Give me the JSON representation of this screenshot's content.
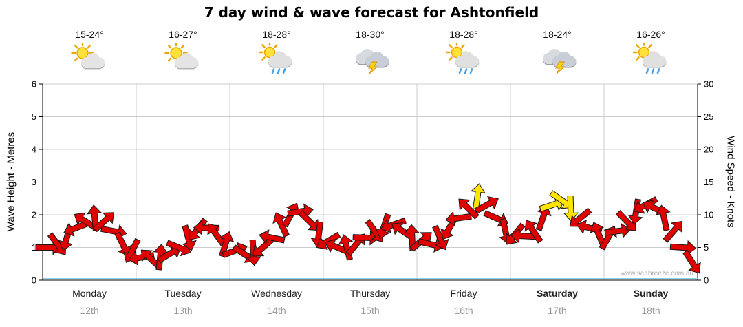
{
  "header": {
    "title": "7 day wind & wave forecast for Ashtonfield"
  },
  "watermark": "www.seabreeze.com.au",
  "days": [
    {
      "name": "Monday",
      "date": "12th",
      "temp": "15-24°",
      "icon": "sun-cloud",
      "bold": false
    },
    {
      "name": "Tuesday",
      "date": "13th",
      "temp": "16-27°",
      "icon": "sun-cloud",
      "bold": false
    },
    {
      "name": "Wednesday",
      "date": "14th",
      "temp": "18-28°",
      "icon": "sun-cloud-rain",
      "bold": false
    },
    {
      "name": "Thursday",
      "date": "15th",
      "temp": "18-30°",
      "icon": "storm",
      "bold": false
    },
    {
      "name": "Friday",
      "date": "16th",
      "temp": "18-28°",
      "icon": "sun-cloud-rain",
      "bold": false
    },
    {
      "name": "Saturday",
      "date": "17th",
      "temp": "18-24°",
      "icon": "storm",
      "bold": true
    },
    {
      "name": "Sunday",
      "date": "18th",
      "temp": "16-26°",
      "icon": "sun-cloud-rain",
      "bold": true
    }
  ],
  "chart_data": {
    "type": "wind-wave-arrows",
    "title": "7 day wind & wave forecast for Ashtonfield",
    "wave_axis": {
      "label": "Wave Height - Metres",
      "min": 0,
      "max": 6,
      "ticks": [
        0,
        1,
        2,
        3,
        4,
        5,
        6
      ]
    },
    "wind_axis": {
      "label": "Wind Speed - Knots",
      "min": 0,
      "max": 30,
      "ticks": [
        0,
        5,
        10,
        15,
        20,
        25,
        30
      ]
    },
    "categories": [
      "Monday 12th",
      "Tuesday 13th",
      "Wednesday 14th",
      "Thursday 15th",
      "Friday 16th",
      "Saturday 17th",
      "Sunday 18th"
    ],
    "samples_per_day": 10,
    "wave_heights_m": [
      1.0,
      1.1,
      1.3,
      1.6,
      1.8,
      1.9,
      1.8,
      1.5,
      1.1,
      0.9,
      0.7,
      0.65,
      0.7,
      0.8,
      1.0,
      1.3,
      1.55,
      1.6,
      1.4,
      1.1,
      0.9,
      0.8,
      0.85,
      1.0,
      1.3,
      1.7,
      2.0,
      2.1,
      1.8,
      1.4,
      1.2,
      1.0,
      1.0,
      1.1,
      1.3,
      1.5,
      1.65,
      1.7,
      1.5,
      1.3,
      1.2,
      1.1,
      1.3,
      1.6,
      1.9,
      2.2,
      2.55,
      2.3,
      1.9,
      1.5,
      1.4,
      1.35,
      1.5,
      1.9,
      2.3,
      2.45,
      2.2,
      1.9,
      1.6,
      1.4,
      1.3,
      1.5,
      1.8,
      2.1,
      2.3,
      2.2,
      1.9,
      1.5,
      1.0,
      0.55
    ],
    "arrow_directions_deg": [
      0,
      53,
      106,
      159,
      212,
      265,
      318,
      11,
      64,
      117,
      170,
      223,
      276,
      329,
      22,
      75,
      128,
      181,
      234,
      287,
      340,
      33,
      86,
      139,
      192,
      245,
      298,
      351,
      44,
      97,
      150,
      203,
      256,
      309,
      2,
      55,
      108,
      161,
      214,
      267,
      320,
      13,
      66,
      119,
      172,
      225,
      278,
      331,
      24,
      77,
      130,
      183,
      236,
      289,
      342,
      35,
      88,
      141,
      194,
      247,
      300,
      353,
      46,
      99,
      152,
      205,
      258,
      311,
      4,
      57
    ],
    "yellow_indices": [
      46,
      54,
      55,
      56
    ]
  },
  "colors": {
    "arrow_red": "#e00000",
    "arrow_yellow": "#ffe400",
    "arrow_outline": "#1a1a1a",
    "grid": "#cccccc",
    "axis": "#000000",
    "baseline_blue": "#86d2f0",
    "watermark": "#b0b0b0"
  }
}
